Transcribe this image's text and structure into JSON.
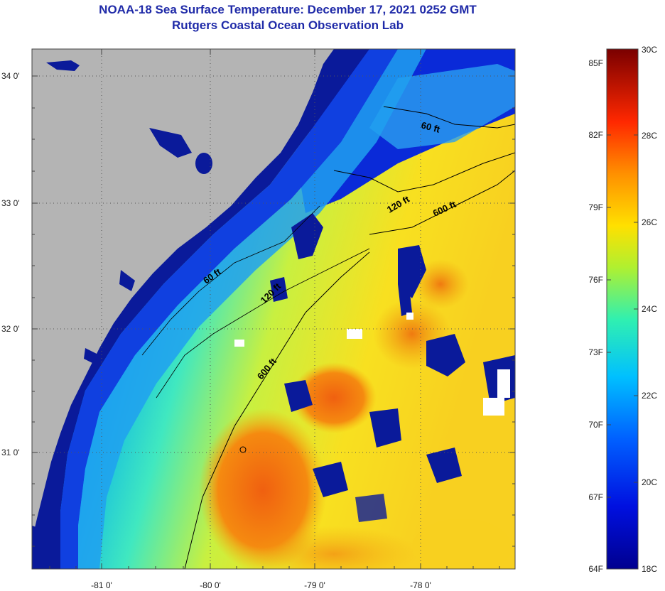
{
  "header": {
    "title": "NOAA-18 Sea Surface Temperature:  December 17, 2021 0252 GMT",
    "subtitle": "Rutgers Coastal Ocean Observation Lab"
  },
  "map": {
    "longitude_ticks": [
      "-81 0'",
      "-80 0'",
      "-79 0'",
      "-78 0'"
    ],
    "latitude_ticks": [
      "34 0'",
      "33 0'",
      "32 0'",
      "31 0'"
    ],
    "isobaths": [
      {
        "label": "60 ft"
      },
      {
        "label": "120 ft"
      },
      {
        "label": "600 ft"
      },
      {
        "label": "60 ft"
      },
      {
        "label": "120 ft"
      },
      {
        "label": "600 ft"
      }
    ]
  },
  "colorbar": {
    "fahrenheit_labels": [
      "85F",
      "82F",
      "79F",
      "76F",
      "73F",
      "70F",
      "67F",
      "64F"
    ],
    "celsius_labels": [
      "30C",
      "28C",
      "26C",
      "24C",
      "22C",
      "20C",
      "18C"
    ],
    "min_c": 18,
    "max_c": 30,
    "min_f": 64,
    "max_f": 85
  },
  "colors": {
    "title": "#1f2aa8",
    "land": "#b4b4b4",
    "cold": "#08108a",
    "warm": "#e85d0e",
    "hot": "#7a0000"
  }
}
